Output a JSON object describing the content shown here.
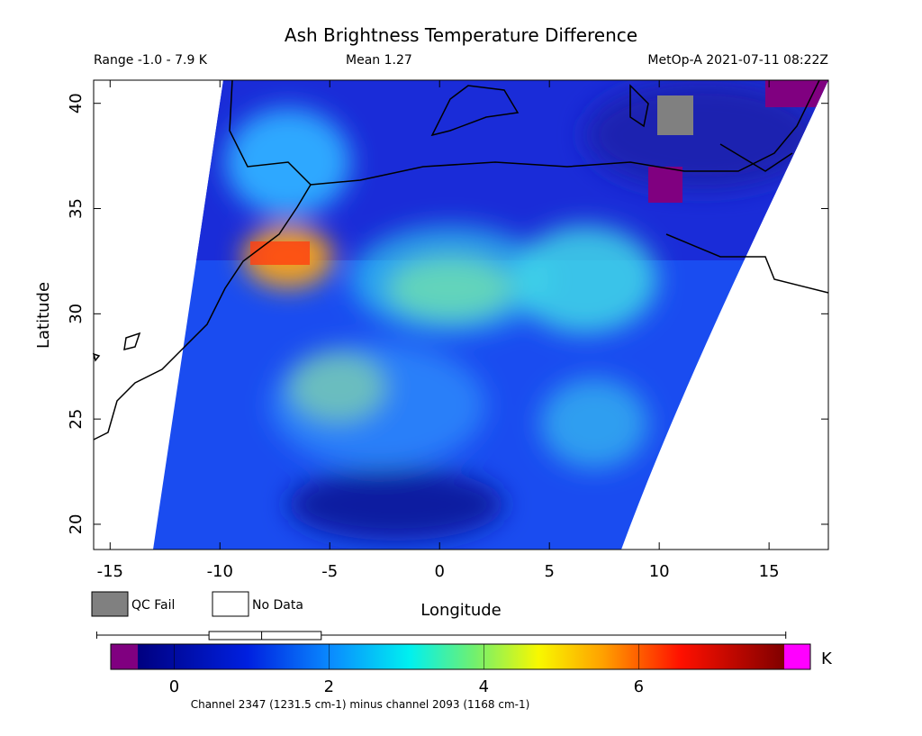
{
  "header": {
    "title": "Ash Brightness Temperature Difference",
    "range": "Range -1.0 - 7.9 K",
    "mean": "Mean 1.27",
    "satellite": "MetOp-A 2021-07-11 08:22Z"
  },
  "map": {
    "x_label": "Longitude",
    "y_label": "Latitude",
    "xlim": [
      -15.75,
      17.7
    ],
    "ylim": [
      18.8,
      41.1
    ],
    "xticks": [
      -15,
      -10,
      -5,
      0,
      5,
      10,
      15
    ],
    "yticks": [
      20,
      25,
      30,
      35,
      40
    ]
  },
  "legend": {
    "qc_fail": "QC Fail",
    "no_data": "No Data"
  },
  "boxplot": {
    "min": -1.0,
    "q1": 0.45,
    "median": 1.13,
    "q3": 1.9,
    "max": 7.9
  },
  "colorbar": {
    "lim": [
      -0.47,
      7.88
    ],
    "ticks": [
      0,
      2,
      4,
      6
    ],
    "unit": "K",
    "caption": "Channel 2347 (1231.5 cm-1) minus channel 2093 (1168 cm-1)"
  }
}
